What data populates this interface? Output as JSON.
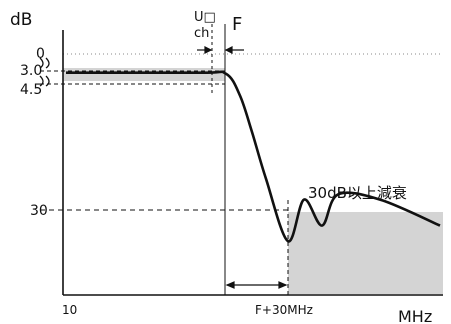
{
  "chart_data": {
    "type": "line",
    "y_unit_label": "dB",
    "x_unit_label": "MHz",
    "x_start_label": "10",
    "y_reference_labels": [
      "0",
      "3.0",
      "4.5",
      "30"
    ],
    "y_reference_values": [
      0,
      3.0,
      4.5,
      30
    ],
    "y_axis_inverted": true,
    "annotations": {
      "uhf_channel": "U□\nch",
      "cutoff": "F",
      "attenuation_region": "30dB以上減衰",
      "stop_frequency": "F+30MHz"
    },
    "series": [
      {
        "x": [
          "10",
          "…",
          "F",
          "",
          "",
          "",
          "F+30MHz",
          "",
          "",
          "",
          "",
          ""
        ],
        "y": [
          3.6,
          3.6,
          3.8,
          8,
          15,
          24,
          36,
          28,
          33,
          27,
          28,
          33
        ]
      }
    ],
    "shaded_regions": [
      "passband 3.0–4.5 dB",
      "stopband ≥30 dB beyond F+30MHz"
    ],
    "grid": false
  },
  "colors": {
    "curve": "#111111",
    "shade": "#d4d4d4",
    "axis": "#111111"
  }
}
